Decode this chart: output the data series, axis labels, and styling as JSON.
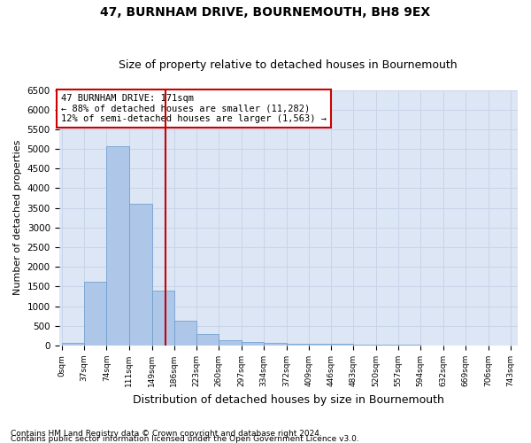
{
  "title": "47, BURNHAM DRIVE, BOURNEMOUTH, BH8 9EX",
  "subtitle": "Size of property relative to detached houses in Bournemouth",
  "xlabel": "Distribution of detached houses by size in Bournemouth",
  "ylabel": "Number of detached properties",
  "footer_line1": "Contains HM Land Registry data © Crown copyright and database right 2024.",
  "footer_line2": "Contains public sector information licensed under the Open Government Licence v3.0.",
  "annotation_line1": "47 BURNHAM DRIVE: 171sqm",
  "annotation_line2": "← 88% of detached houses are smaller (11,282)",
  "annotation_line3": "12% of semi-detached houses are larger (1,563) →",
  "bar_left_edges": [
    0,
    37,
    74,
    111,
    149,
    186,
    223,
    260,
    297,
    334,
    372,
    409,
    446,
    483,
    520,
    557,
    594,
    632,
    669,
    706
  ],
  "bar_widths": [
    37,
    37,
    37,
    38,
    37,
    37,
    37,
    37,
    37,
    38,
    37,
    37,
    37,
    37,
    37,
    37,
    38,
    37,
    37,
    37
  ],
  "bar_heights": [
    75,
    1625,
    5075,
    3600,
    1400,
    625,
    290,
    140,
    100,
    80,
    55,
    50,
    45,
    35,
    20,
    15,
    10,
    10,
    5,
    5
  ],
  "bar_color": "#aec6e8",
  "bar_edgecolor": "#6699cc",
  "vline_x": 171,
  "vline_color": "#cc0000",
  "ylim": [
    0,
    6500
  ],
  "yticks": [
    0,
    500,
    1000,
    1500,
    2000,
    2500,
    3000,
    3500,
    4000,
    4500,
    5000,
    5500,
    6000,
    6500
  ],
  "xtick_labels": [
    "0sqm",
    "37sqm",
    "74sqm",
    "111sqm",
    "149sqm",
    "186sqm",
    "223sqm",
    "260sqm",
    "297sqm",
    "334sqm",
    "372sqm",
    "409sqm",
    "446sqm",
    "483sqm",
    "520sqm",
    "557sqm",
    "594sqm",
    "632sqm",
    "669sqm",
    "706sqm",
    "743sqm"
  ],
  "xtick_positions": [
    0,
    37,
    74,
    111,
    149,
    186,
    223,
    260,
    297,
    334,
    372,
    409,
    446,
    483,
    520,
    557,
    594,
    632,
    669,
    706,
    743
  ],
  "grid_color": "#c8d4e8",
  "plot_background": "#dce6f5",
  "title_fontsize": 10,
  "subtitle_fontsize": 9,
  "annotation_box_edgecolor": "#cc0000",
  "annotation_box_facecolor": "white",
  "footer_fontsize": 6.5,
  "xlabel_fontsize": 9,
  "ylabel_fontsize": 8
}
